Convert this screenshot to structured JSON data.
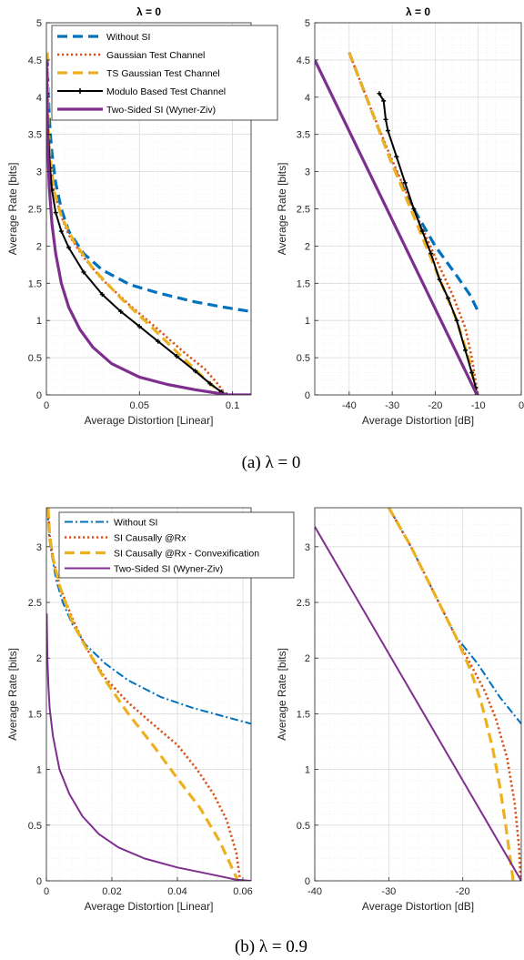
{
  "chart_data": [
    {
      "type": "line",
      "title": "λ = 0",
      "xlabel": "Average Distortion [Linear]",
      "ylabel": "Average Rate [bits]",
      "xlim": [
        0,
        0.11
      ],
      "ylim": [
        0,
        5
      ],
      "xticks": [
        0,
        0.05,
        0.1
      ],
      "xtick_labels": [
        "0",
        "0.05",
        "0.1"
      ],
      "yticks": [
        0,
        0.5,
        1,
        1.5,
        2,
        2.5,
        3,
        3.5,
        4,
        4.5,
        5
      ],
      "ytick_labels": [
        "0",
        "0.5",
        "1",
        "1.5",
        "2",
        "2.5",
        "3",
        "3.5",
        "4",
        "4.5",
        "5"
      ],
      "grid": true,
      "minor_grid": true,
      "legend": "top",
      "series": [
        {
          "name": "Without SI",
          "color": "#0072BD",
          "style": "dashed-thick",
          "x": [
            0.0005,
            0.001,
            0.002,
            0.003,
            0.005,
            0.008,
            0.012,
            0.02,
            0.03,
            0.045,
            0.06,
            0.08,
            0.095,
            0.11
          ],
          "y": [
            4.55,
            4.05,
            3.55,
            3.25,
            2.85,
            2.5,
            2.2,
            1.9,
            1.68,
            1.48,
            1.37,
            1.25,
            1.18,
            1.12
          ]
        },
        {
          "name": "Gaussian Test Channel",
          "color": "#D95319",
          "style": "dotted",
          "x": [
            0.0005,
            0.001,
            0.002,
            0.004,
            0.008,
            0.012,
            0.02,
            0.03,
            0.045,
            0.06,
            0.075,
            0.085,
            0.092,
            0.095,
            0.097
          ],
          "y": [
            4.0,
            3.6,
            3.2,
            2.75,
            2.4,
            2.15,
            1.85,
            1.55,
            1.2,
            0.88,
            0.55,
            0.35,
            0.15,
            0.05,
            0.0
          ]
        },
        {
          "name": "TS Gaussian Test Channel",
          "color": "#EDB120",
          "style": "dashed-thick",
          "x": [
            0.0005,
            0.001,
            0.002,
            0.004,
            0.008,
            0.015,
            0.025,
            0.04,
            0.055,
            0.07,
            0.085,
            0.095
          ],
          "y": [
            4.6,
            3.6,
            3.2,
            2.75,
            2.4,
            2.05,
            1.7,
            1.3,
            0.95,
            0.58,
            0.22,
            0.0
          ]
        },
        {
          "name": "Modulo Based Test Channel",
          "color": "#000000",
          "style": "solid-marker",
          "x": [
            0.0005,
            0.001,
            0.002,
            0.003,
            0.005,
            0.008,
            0.012,
            0.02,
            0.03,
            0.04,
            0.05,
            0.06,
            0.07,
            0.08,
            0.088,
            0.094,
            0.097
          ],
          "y": [
            4.05,
            3.5,
            3.05,
            2.75,
            2.45,
            2.2,
            1.98,
            1.65,
            1.35,
            1.12,
            0.92,
            0.72,
            0.52,
            0.32,
            0.15,
            0.04,
            0.0
          ]
        },
        {
          "name": "Two-Sided SI (Wyner-Ziv)",
          "color": "#7E2F8E",
          "style": "solid-thick",
          "x": [
            0.00012,
            0.0003,
            0.0008,
            0.0015,
            0.003,
            0.005,
            0.008,
            0.012,
            0.018,
            0.025,
            0.035,
            0.05,
            0.065,
            0.08,
            0.09,
            0.097,
            0.11
          ],
          "y": [
            4.5,
            4.0,
            3.3,
            2.8,
            2.3,
            1.9,
            1.5,
            1.18,
            0.88,
            0.64,
            0.42,
            0.24,
            0.14,
            0.07,
            0.03,
            0.0,
            0.0
          ]
        }
      ]
    },
    {
      "type": "line",
      "title": "λ = 0",
      "xlabel": "Average Distortion [dB]",
      "ylabel": "Average Rate [bits]",
      "xlim": [
        -48,
        0
      ],
      "ylim": [
        0,
        5
      ],
      "xticks": [
        -40,
        -30,
        -20,
        -10,
        0
      ],
      "xtick_labels": [
        "-40",
        "-30",
        "-20",
        "-10",
        "0"
      ],
      "yticks": [
        0,
        0.5,
        1,
        1.5,
        2,
        2.5,
        3,
        3.5,
        4,
        4.5,
        5
      ],
      "ytick_labels": [
        "0",
        "0.5",
        "1",
        "1.5",
        "2",
        "2.5",
        "3",
        "3.5",
        "4",
        "4.5",
        "5"
      ],
      "grid": true,
      "minor_grid": true,
      "series": [
        {
          "name": "Without SI",
          "color": "#0072BD",
          "style": "dashed-thick",
          "x": [
            -40,
            -35,
            -30,
            -25,
            -20,
            -15,
            -12,
            -10
          ],
          "y": [
            4.6,
            3.85,
            3.1,
            2.5,
            2.0,
            1.6,
            1.35,
            1.12
          ]
        },
        {
          "name": "Gaussian Test Channel",
          "color": "#D95319",
          "style": "dotted",
          "x": [
            -40,
            -35,
            -30,
            -25,
            -20,
            -16,
            -13,
            -11.5,
            -10.6,
            -10.3
          ],
          "y": [
            4.6,
            3.85,
            3.15,
            2.5,
            1.85,
            1.35,
            0.9,
            0.5,
            0.18,
            0.0
          ]
        },
        {
          "name": "TS Gaussian Test Channel",
          "color": "#EDB120",
          "style": "dashed-thick",
          "x": [
            -40,
            -35,
            -30,
            -25,
            -20,
            -15,
            -12,
            -10.8,
            -10.5
          ],
          "y": [
            4.6,
            3.85,
            3.1,
            2.4,
            1.7,
            1.0,
            0.45,
            0.12,
            0.0
          ]
        },
        {
          "name": "Modulo Based Test Channel",
          "color": "#000000",
          "style": "solid-marker",
          "x": [
            -33,
            -32,
            -31.5,
            -31,
            -29,
            -27,
            -25,
            -23,
            -21,
            -19,
            -17,
            -15,
            -13,
            -11.5,
            -10.6,
            -10.3
          ],
          "y": [
            4.05,
            3.95,
            3.7,
            3.55,
            3.2,
            2.85,
            2.5,
            2.2,
            1.9,
            1.55,
            1.3,
            1.0,
            0.6,
            0.3,
            0.1,
            0.0
          ]
        },
        {
          "name": "Two-Sided SI (Wyner-Ziv)",
          "color": "#7E2F8E",
          "style": "solid-thick",
          "x": [
            -48,
            -10.3
          ],
          "y": [
            4.5,
            0.0
          ]
        }
      ]
    },
    {
      "type": "line",
      "title": "",
      "xlabel": "Average Distortion [Linear]",
      "ylabel": "Average Rate [bits]",
      "xlim": [
        0,
        0.0625
      ],
      "ylim": [
        0,
        3.35
      ],
      "xticks": [
        0,
        0.02,
        0.04,
        0.06
      ],
      "xtick_labels": [
        "0",
        "0.02",
        "0.04",
        "0.06"
      ],
      "yticks": [
        0,
        0.5,
        1,
        1.5,
        2,
        2.5,
        3
      ],
      "ytick_labels": [
        "0",
        "0.5",
        "1",
        "1.5",
        "2",
        "2.5",
        "3"
      ],
      "grid": true,
      "minor_grid": true,
      "legend": "top-right",
      "series": [
        {
          "name": "Without SI",
          "color": "#0072BD",
          "style": "dashdot",
          "x": [
            0.0003,
            0.0008,
            0.0015,
            0.003,
            0.005,
            0.008,
            0.012,
            0.018,
            0.025,
            0.035,
            0.045,
            0.055,
            0.0625
          ],
          "y": [
            3.35,
            3.1,
            2.95,
            2.7,
            2.5,
            2.3,
            2.12,
            1.95,
            1.8,
            1.65,
            1.55,
            1.47,
            1.41
          ]
        },
        {
          "name": "SI Causally @Rx",
          "color": "#D95319",
          "style": "dotted",
          "x": [
            0.0005,
            0.001,
            0.002,
            0.004,
            0.008,
            0.012,
            0.018,
            0.025,
            0.032,
            0.04,
            0.046,
            0.051,
            0.055,
            0.058,
            0.0592
          ],
          "y": [
            3.35,
            3.1,
            2.9,
            2.65,
            2.35,
            2.1,
            1.82,
            1.6,
            1.42,
            1.22,
            1.0,
            0.78,
            0.55,
            0.25,
            0.0
          ]
        },
        {
          "name": "SI Causally @Rx - Convexification",
          "color": "#EDB120",
          "style": "dashed-thick",
          "x": [
            0.0005,
            0.001,
            0.002,
            0.004,
            0.008,
            0.012,
            0.018,
            0.025,
            0.033,
            0.04,
            0.047,
            0.053,
            0.0585
          ],
          "y": [
            3.35,
            3.1,
            2.9,
            2.65,
            2.32,
            2.1,
            1.8,
            1.5,
            1.2,
            0.92,
            0.65,
            0.35,
            0.0
          ]
        },
        {
          "name": "Two-Sided SI (Wyner-Ziv)",
          "color": "#7E2F8E",
          "style": "solid",
          "x": [
            0.0001,
            0.0003,
            0.0006,
            0.001,
            0.002,
            0.004,
            0.007,
            0.011,
            0.016,
            0.022,
            0.03,
            0.04,
            0.05,
            0.058,
            0.0625
          ],
          "y": [
            2.4,
            2.0,
            1.75,
            1.55,
            1.3,
            1.0,
            0.78,
            0.58,
            0.42,
            0.3,
            0.2,
            0.12,
            0.06,
            0.01,
            0.0
          ]
        }
      ]
    },
    {
      "type": "line",
      "title": "",
      "xlabel": "Average Distortion [dB]",
      "ylabel": "Average Rate [bits]",
      "xlim": [
        -40,
        -12.1
      ],
      "ylim": [
        0,
        3.35
      ],
      "xticks": [
        -40,
        -30,
        -20
      ],
      "xtick_labels": [
        "-40",
        "-30",
        "-20"
      ],
      "yticks": [
        0,
        0.5,
        1,
        1.5,
        2,
        2.5,
        3
      ],
      "ytick_labels": [
        "0",
        "0.5",
        "1",
        "1.5",
        "2",
        "2.5",
        "3"
      ],
      "grid": true,
      "minor_grid": true,
      "series": [
        {
          "name": "Without SI",
          "color": "#0072BD",
          "style": "dashdot",
          "x": [
            -30,
            -27,
            -24,
            -21,
            -18,
            -15,
            -12.1
          ],
          "y": [
            3.35,
            3.0,
            2.6,
            2.2,
            1.95,
            1.65,
            1.41
          ]
        },
        {
          "name": "SI Causally @Rx",
          "color": "#D95319",
          "style": "dotted",
          "x": [
            -30,
            -27,
            -24,
            -21,
            -19,
            -17,
            -15.5,
            -14,
            -13,
            -12.4,
            -12.2
          ],
          "y": [
            3.35,
            3.0,
            2.6,
            2.2,
            1.95,
            1.7,
            1.45,
            1.1,
            0.7,
            0.3,
            0.0
          ]
        },
        {
          "name": "SI Causally @Rx - Convexification",
          "color": "#EDB120",
          "style": "dashed-thick",
          "x": [
            -30,
            -27,
            -24,
            -21,
            -19,
            -17.5,
            -16,
            -15,
            -14.2,
            -13.6,
            -13.2
          ],
          "y": [
            3.35,
            3.0,
            2.6,
            2.2,
            1.9,
            1.6,
            1.2,
            0.85,
            0.5,
            0.2,
            0.0
          ]
        },
        {
          "name": "Two-Sided SI (Wyner-Ziv)",
          "color": "#7E2F8E",
          "style": "solid",
          "x": [
            -40,
            -12.1
          ],
          "y": [
            3.18,
            0.0
          ]
        }
      ]
    }
  ],
  "captions": {
    "a": "(a)  λ = 0",
    "b": "(b)  λ = 0.9"
  }
}
